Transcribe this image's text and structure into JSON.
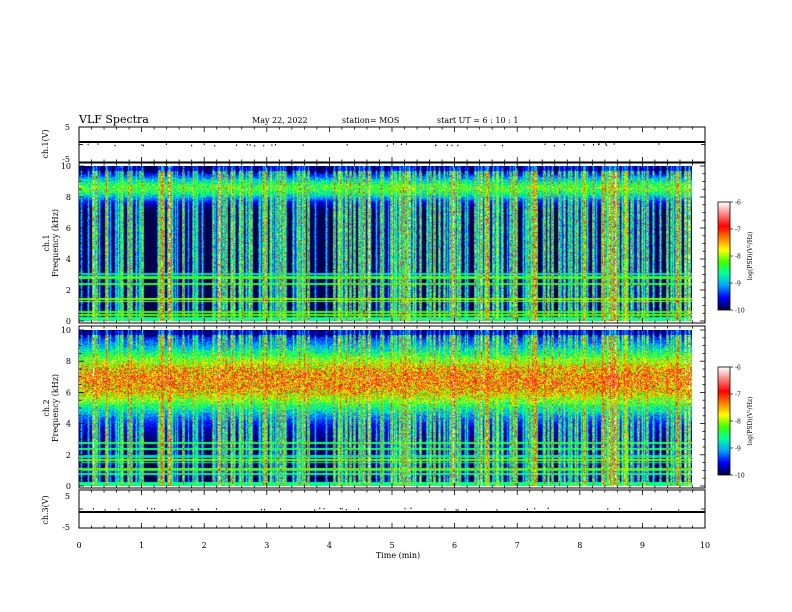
{
  "header": {
    "title": "VLF Spectra",
    "date": "May 22, 2022",
    "station": "station= MOS",
    "start": "start  UT  =   6  : 10 : 1"
  },
  "colors": {
    "background_spectrogram": "#000000",
    "colormap": [
      "#000040",
      "#0000ff",
      "#00a0ff",
      "#00ffa0",
      "#40ff00",
      "#ffff00",
      "#ff8000",
      "#ff0000",
      "#ff8080",
      "#ffffff"
    ]
  },
  "chart_data": [
    {
      "type": "line",
      "name": "ch1-voltage",
      "ylabel": "ch.1(V)",
      "ylim": [
        -5,
        5
      ],
      "yticks": [
        "5",
        "-5"
      ],
      "baseline_volts": -1.5,
      "xlim": [
        0,
        10
      ]
    },
    {
      "type": "heatmap",
      "name": "ch1-spectrogram",
      "ylabel": "ch.1\nFrequency (kHz)",
      "ylim": [
        0,
        10
      ],
      "yticks": [
        "0",
        "2",
        "4",
        "6",
        "8",
        "10"
      ],
      "xlim": [
        0,
        9.8
      ],
      "colorbar": {
        "label": "log(PSD)(V²/Hz)",
        "ticks": [
          "-6",
          "-7",
          "-8",
          "-9",
          "-10"
        ],
        "range": [
          -10,
          -6
        ]
      },
      "band_center_khz": 8.6,
      "band_width_khz": 1.2
    },
    {
      "type": "heatmap",
      "name": "ch2-spectrogram",
      "ylabel": "ch.2\nFrequency (kHz)",
      "ylim": [
        0,
        10
      ],
      "yticks": [
        "0",
        "2",
        "4",
        "6",
        "8",
        "10"
      ],
      "xlim": [
        0,
        9.8
      ],
      "colorbar": {
        "label": "log(PSD)(V²/Hz)",
        "ticks": [
          "-6",
          "-7",
          "-8",
          "-9",
          "-10"
        ],
        "range": [
          -10,
          -6
        ]
      },
      "band_center_khz": 6.8,
      "band_width_khz": 3.2
    },
    {
      "type": "line",
      "name": "ch3-voltage",
      "ylabel": "ch.3(V)",
      "ylim": [
        -5,
        5
      ],
      "yticks": [
        "5",
        "-5"
      ],
      "baseline_volts": -1.5,
      "xlim": [
        0,
        10
      ]
    }
  ],
  "xaxis": {
    "label": "Time  (min)",
    "ticks": [
      "0",
      "1",
      "2",
      "3",
      "4",
      "5",
      "6",
      "7",
      "8",
      "9",
      "10"
    ]
  }
}
